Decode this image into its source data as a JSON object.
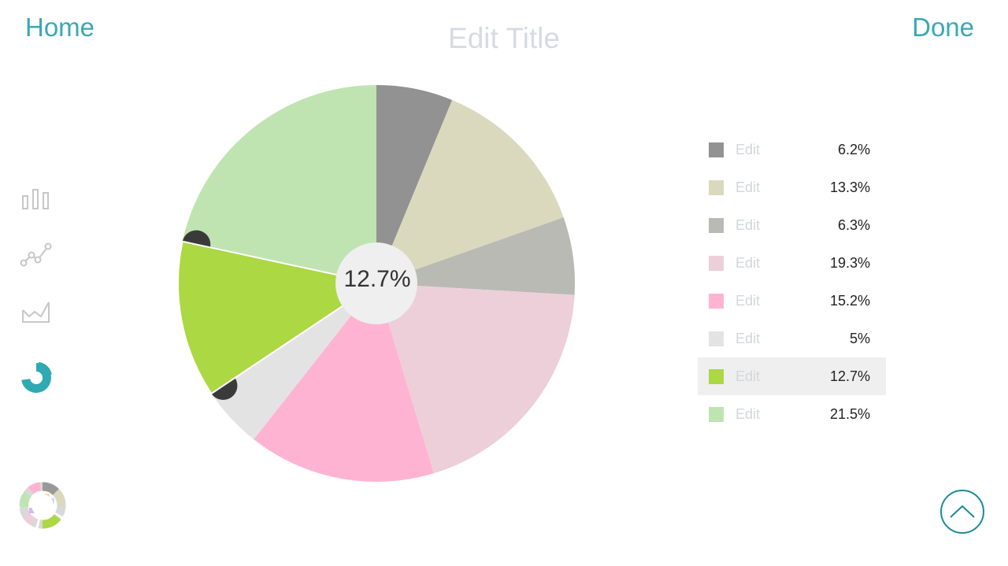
{
  "header": {
    "home_label": "Home",
    "title": "Edit Title",
    "done_label": "Done"
  },
  "sidebar": {
    "icons": [
      "bar-chart-icon",
      "line-chart-icon",
      "area-chart-icon",
      "pie-chart-icon"
    ],
    "selected": "pie-chart-icon",
    "accent_color": "#2fa9b3"
  },
  "chart_data": {
    "type": "pie",
    "start": "top, clockwise",
    "slices": [
      {
        "label": "Edit",
        "value": 6.2,
        "display": "6.2%",
        "color": "#929292"
      },
      {
        "label": "Edit",
        "value": 13.3,
        "display": "13.3%",
        "color": "#dad9be"
      },
      {
        "label": "Edit",
        "value": 6.3,
        "display": "6.3%",
        "color": "#babab5"
      },
      {
        "label": "Edit",
        "value": 19.3,
        "display": "19.3%",
        "color": "#edcfd9"
      },
      {
        "label": "Edit",
        "value": 15.2,
        "display": "15.2%",
        "color": "#ffb3d2"
      },
      {
        "label": "Edit",
        "value": 5,
        "display": "5%",
        "color": "#e3e3e3"
      },
      {
        "label": "Edit",
        "value": 12.7,
        "display": "12.7%",
        "color": "#acd843"
      },
      {
        "label": "Edit",
        "value": 21.5,
        "display": "21.5%",
        "color": "#bfe4b2"
      }
    ],
    "selected_index": 6,
    "center_label": "12.7%"
  },
  "buttons": {
    "palette": "color-palette-icon",
    "up": "chevron-up-icon"
  }
}
